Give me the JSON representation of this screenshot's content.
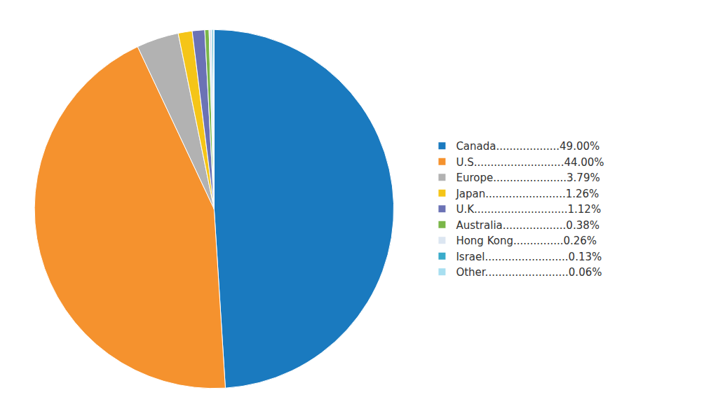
{
  "chart_data": {
    "type": "pie",
    "categories": [
      "Canada...................49.00%",
      "U.S...........................44.00%",
      "Europe......................3.79%",
      "Japan........................1.26%",
      "U.K............................1.12%",
      "Australia...................0.38%",
      "Hong Kong...............0.26%",
      "Israel.........................0.13%",
      "Other.........................0.06%"
    ],
    "values": [
      49.0,
      44.0,
      3.79,
      1.26,
      1.12,
      0.38,
      0.26,
      0.13,
      0.06
    ],
    "colors": [
      "#1a7abf",
      "#f5922e",
      "#b2b2b2",
      "#f5c518",
      "#6b72b5",
      "#7ab648",
      "#dce6f1",
      "#3aabca",
      "#a8dff0"
    ],
    "legend": "right",
    "data_labels": false
  }
}
